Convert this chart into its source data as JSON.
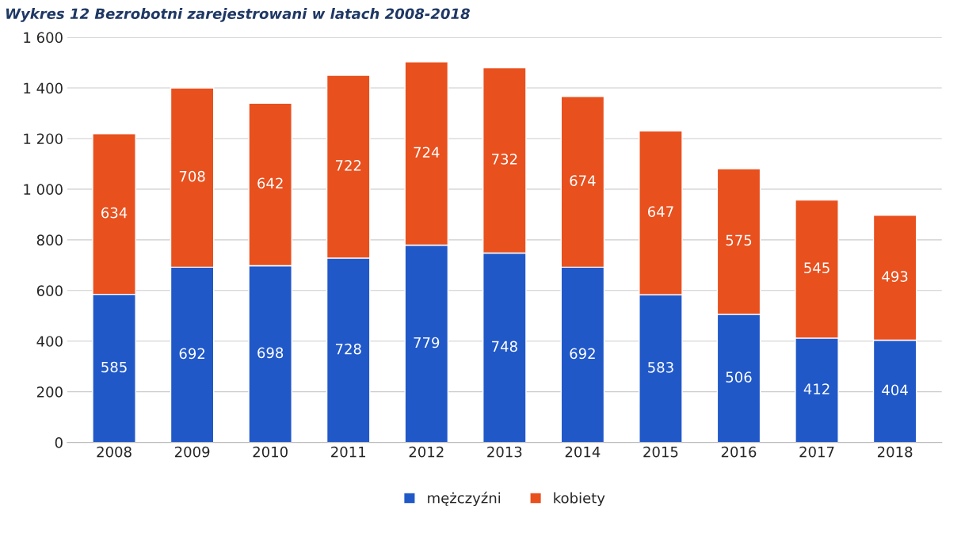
{
  "chart_data": {
    "type": "bar",
    "title": "Wykres 12 Bezrobotni zarejestrowani w latach 2008-2018",
    "categories": [
      "2008",
      "2009",
      "2010",
      "2011",
      "2012",
      "2013",
      "2014",
      "2015",
      "2016",
      "2017",
      "2018"
    ],
    "stacked": true,
    "data_labels": true,
    "legend": "bottom",
    "grid": "y",
    "ylim": [
      0,
      1600
    ],
    "yticks": [
      0,
      200,
      400,
      600,
      800,
      {
        "value": 1000,
        "label": "1 000"
      },
      {
        "value": 1200,
        "label": "1 200"
      },
      {
        "value": 1400,
        "label": "1 400"
      },
      {
        "value": 1600,
        "label": "1 600"
      }
    ],
    "series": [
      {
        "name": "mężczyźni",
        "color": "#2058c8",
        "values": [
          585,
          692,
          698,
          728,
          779,
          748,
          692,
          583,
          506,
          412,
          404
        ]
      },
      {
        "name": "kobiety",
        "color": "#e8501e",
        "values": [
          634,
          708,
          642,
          722,
          724,
          732,
          674,
          647,
          575,
          545,
          493
        ]
      }
    ]
  }
}
